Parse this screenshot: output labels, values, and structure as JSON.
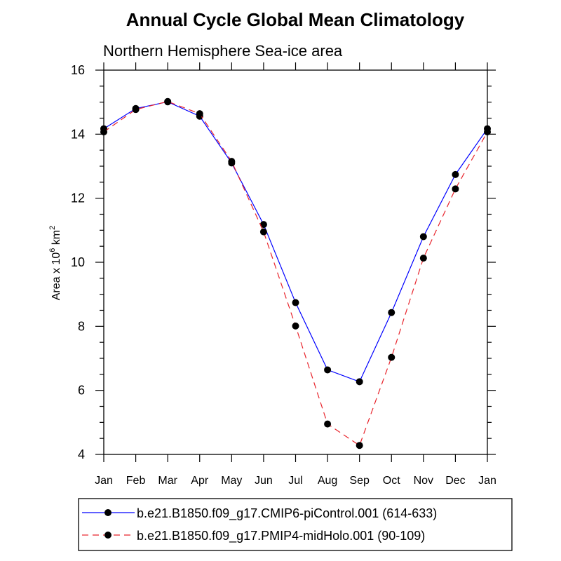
{
  "chart_data": {
    "type": "line",
    "title": "Annual Cycle Global Mean Climatology",
    "subtitle": "Northern Hemisphere Sea-ice area",
    "ylabel": {
      "base": "Area x 10",
      "exp1": "6",
      "mid": " km",
      "exp2": "2"
    },
    "xlabel": "",
    "categories": [
      "Jan",
      "Feb",
      "Mar",
      "Apr",
      "May",
      "Jun",
      "Jul",
      "Aug",
      "Sep",
      "Oct",
      "Nov",
      "Dec",
      "Jan"
    ],
    "ylim": [
      4,
      16
    ],
    "yticks_major": [
      4,
      6,
      8,
      10,
      12,
      14,
      16
    ],
    "yticks_major_labels": [
      "4",
      "6",
      "8",
      "10",
      "12",
      "14",
      "16"
    ],
    "grid": false,
    "legend_position": "bottom",
    "series": [
      {
        "name": "b.e21.B1850.f09_g17.CMIP6-piControl.001 (614-633)",
        "color": "#0000ff",
        "dash": "solid",
        "values": [
          14.17,
          14.8,
          15.01,
          14.56,
          13.1,
          11.18,
          8.74,
          6.64,
          6.27,
          8.43,
          10.8,
          12.74,
          14.17
        ]
      },
      {
        "name": "b.e21.B1850.f09_g17.PMIP4-midHolo.001 (90-109)",
        "color": "#e8232b",
        "dash": "dashed",
        "values": [
          14.07,
          14.77,
          15.02,
          14.64,
          13.15,
          10.95,
          8.01,
          4.95,
          4.28,
          7.03,
          10.13,
          12.29,
          14.07
        ]
      }
    ]
  }
}
